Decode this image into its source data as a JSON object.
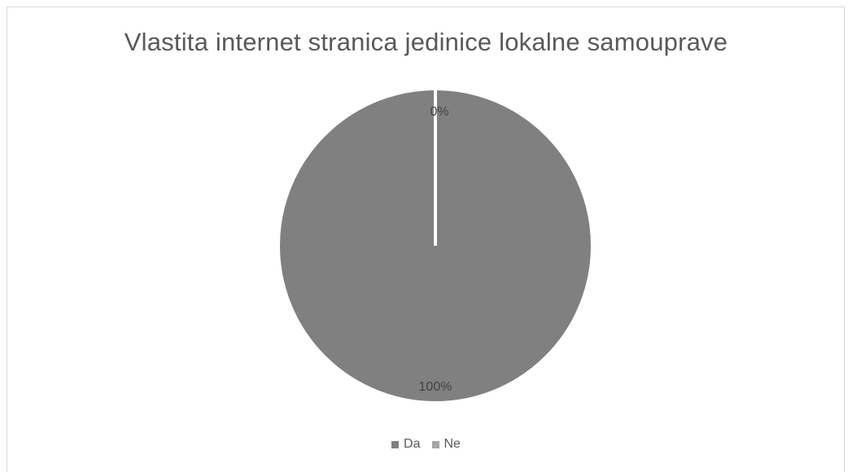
{
  "chart_data": {
    "type": "pie",
    "title": "Vlastita internet stranica jedinice lokalne samouprave",
    "categories": [
      "Da",
      "Ne"
    ],
    "values": [
      100,
      0
    ],
    "data_labels": [
      "100%",
      "0%"
    ],
    "colors": [
      "#808080",
      "#a6a6a6"
    ],
    "legend": {
      "placement": "bottom",
      "entries": [
        "Da",
        "Ne"
      ]
    }
  }
}
